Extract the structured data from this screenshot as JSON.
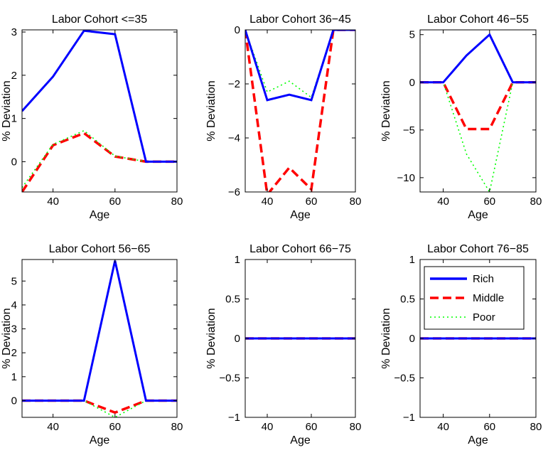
{
  "chart_data": [
    {
      "type": "line",
      "title": "Labor Cohort <=35",
      "xlabel": "Age",
      "ylabel": "% Deviation",
      "xlim": [
        30,
        80
      ],
      "ylim": [
        -0.7,
        3.05
      ],
      "xticks": [
        40,
        60,
        80
      ],
      "yticks": [
        0,
        1,
        2,
        3
      ],
      "x": [
        30,
        40,
        50,
        60,
        70,
        80
      ],
      "series": [
        {
          "name": "Rich",
          "values": [
            1.17,
            1.97,
            3.03,
            2.95,
            0,
            0
          ]
        },
        {
          "name": "Middle",
          "values": [
            -0.7,
            0.38,
            0.66,
            0.12,
            0,
            0
          ]
        },
        {
          "name": "Poor",
          "values": [
            -0.6,
            0.4,
            0.72,
            0.13,
            0,
            0
          ]
        }
      ]
    },
    {
      "type": "line",
      "title": "Labor Cohort 36−45",
      "xlabel": "Age",
      "ylabel": "% Deviation",
      "xlim": [
        30,
        80
      ],
      "ylim": [
        -6,
        0
      ],
      "xticks": [
        40,
        60,
        80
      ],
      "yticks": [
        -6,
        -4,
        -2,
        0
      ],
      "x": [
        30,
        40,
        50,
        60,
        70,
        80
      ],
      "series": [
        {
          "name": "Rich",
          "values": [
            0,
            -2.6,
            -2.4,
            -2.6,
            0,
            0
          ]
        },
        {
          "name": "Middle",
          "values": [
            0,
            -6.1,
            -5.1,
            -5.9,
            0,
            0
          ]
        },
        {
          "name": "Poor",
          "values": [
            0,
            -2.3,
            -1.9,
            -2.5,
            0,
            0
          ]
        }
      ]
    },
    {
      "type": "line",
      "title": "Labor Cohort 46−55",
      "xlabel": "Age",
      "ylabel": "% Deviation",
      "xlim": [
        30,
        80
      ],
      "ylim": [
        -11.5,
        5.5
      ],
      "xticks": [
        40,
        60,
        80
      ],
      "yticks": [
        -10,
        -5,
        0,
        5
      ],
      "x": [
        30,
        40,
        50,
        60,
        70,
        80
      ],
      "series": [
        {
          "name": "Rich",
          "values": [
            0,
            0,
            2.8,
            5,
            0,
            0
          ]
        },
        {
          "name": "Middle",
          "values": [
            0,
            0,
            -4.9,
            -4.9,
            0,
            0
          ]
        },
        {
          "name": "Poor",
          "values": [
            0,
            0,
            -7.5,
            -11.5,
            0,
            0
          ]
        }
      ]
    },
    {
      "type": "line",
      "title": "Labor Cohort 56−65",
      "xlabel": "Age",
      "ylabel": "% Deviation",
      "xlim": [
        30,
        80
      ],
      "ylim": [
        -0.7,
        5.9
      ],
      "xticks": [
        40,
        60,
        80
      ],
      "yticks": [
        0,
        1,
        2,
        3,
        4,
        5
      ],
      "x": [
        30,
        40,
        50,
        60,
        70,
        80
      ],
      "series": [
        {
          "name": "Rich",
          "values": [
            0,
            0,
            0,
            5.85,
            0,
            0
          ]
        },
        {
          "name": "Middle",
          "values": [
            0,
            0,
            0,
            -0.5,
            0,
            0
          ]
        },
        {
          "name": "Poor",
          "values": [
            0,
            0,
            0,
            -0.7,
            0,
            0
          ]
        }
      ]
    },
    {
      "type": "line",
      "title": "Labor Cohort 66−75",
      "xlabel": "Age",
      "ylabel": "% Deviation",
      "xlim": [
        30,
        80
      ],
      "ylim": [
        -1,
        1
      ],
      "xticks": [
        40,
        60,
        80
      ],
      "yticks": [
        -1,
        -0.5,
        0,
        0.5,
        1
      ],
      "x": [
        30,
        40,
        50,
        60,
        70,
        80
      ],
      "series": [
        {
          "name": "Rich",
          "values": [
            0,
            0,
            0,
            0,
            0,
            0
          ]
        },
        {
          "name": "Middle",
          "values": [
            0,
            0,
            0,
            0,
            0,
            0
          ]
        },
        {
          "name": "Poor",
          "values": [
            0,
            0,
            0,
            0,
            0,
            0
          ]
        }
      ]
    },
    {
      "type": "line",
      "title": "Labor Cohort 76−85",
      "xlabel": "Age",
      "ylabel": "% Deviation",
      "xlim": [
        30,
        80
      ],
      "ylim": [
        -1,
        1
      ],
      "xticks": [
        40,
        60,
        80
      ],
      "yticks": [
        -1,
        -0.5,
        0,
        0.5,
        1
      ],
      "x": [
        30,
        40,
        50,
        60,
        70,
        80
      ],
      "legend": "upper-right",
      "series": [
        {
          "name": "Rich",
          "values": [
            0,
            0,
            0,
            0,
            0,
            0
          ]
        },
        {
          "name": "Middle",
          "values": [
            0,
            0,
            0,
            0,
            0,
            0
          ]
        },
        {
          "name": "Poor",
          "values": [
            0,
            0,
            0,
            0,
            0,
            0
          ]
        }
      ]
    }
  ],
  "styles": {
    "Rich": {
      "color": "#0000ff",
      "dash": "solid"
    },
    "Middle": {
      "color": "#ff0000",
      "dash": "dashed"
    },
    "Poor": {
      "color": "#00ff00",
      "dash": "dotted"
    }
  }
}
